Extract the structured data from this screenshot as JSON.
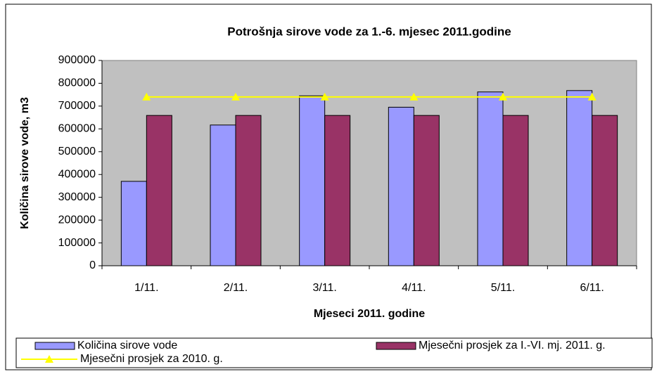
{
  "chart_data": {
    "type": "bar",
    "title": "Potrošnja sirove vode za 1.-6. mjesec 2011.godine",
    "x_label": "Mjeseci 2011. godine",
    "y_label": "Količina sirove vode, m3",
    "categories": [
      "1/11.",
      "2/11.",
      "3/11.",
      "4/11.",
      "5/11.",
      "6/11."
    ],
    "series": [
      {
        "name": "Količina sirove vode",
        "color": "#9999ff",
        "type": "bar",
        "values": [
          370000,
          617000,
          745000,
          695000,
          762000,
          768000
        ]
      },
      {
        "name": "Mjesečni prosjek za I.-VI. mj. 2011. g.",
        "color": "#993366",
        "type": "bar",
        "values": [
          659000,
          659000,
          659000,
          659000,
          659000,
          659000
        ]
      },
      {
        "name": "Mjesečni prosjek za 2010. g.",
        "color": "#ffff00",
        "type": "line",
        "values": [
          740000,
          740000,
          740000,
          740000,
          740000,
          740000
        ]
      }
    ],
    "ylim": [
      0,
      900000
    ],
    "yticks": [
      0,
      100000,
      200000,
      300000,
      400000,
      500000,
      600000,
      700000,
      800000,
      900000
    ],
    "grid": false,
    "plot_background": "#c0c0c0",
    "legend": "bottom"
  }
}
